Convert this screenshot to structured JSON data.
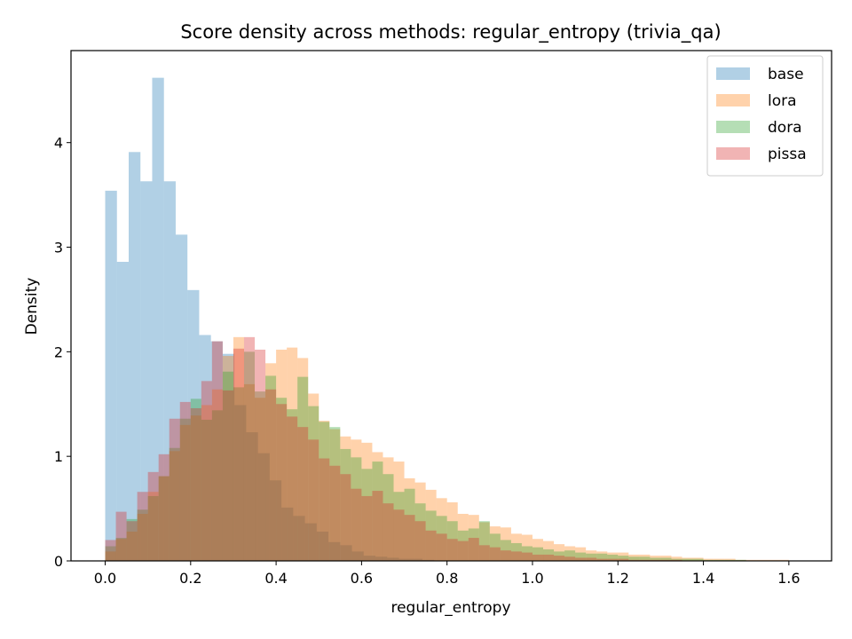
{
  "chart_data": {
    "type": "histogram",
    "title": "Score density across methods: regular_entropy (trivia_qa)",
    "xlabel": "regular_entropy",
    "ylabel": "Density",
    "xlim": [
      -0.08,
      1.7
    ],
    "ylim": [
      0,
      4.88
    ],
    "xticks": [
      "0.0",
      "0.2",
      "0.4",
      "0.6",
      "0.8",
      "1.0",
      "1.2",
      "1.4",
      "1.6"
    ],
    "yticks": [
      "0",
      "1",
      "2",
      "3",
      "4"
    ],
    "legend_position": "top-right",
    "grid": false,
    "series": [
      {
        "name": "base",
        "color": "#1f77b4",
        "opacity": 0.35,
        "bin_start": 0.0,
        "bin_width": 0.0275,
        "values": [
          3.54,
          2.86,
          3.91,
          3.63,
          4.62,
          3.63,
          3.12,
          2.59,
          2.16,
          2.1,
          1.98,
          1.49,
          1.23,
          1.03,
          0.77,
          0.51,
          0.43,
          0.36,
          0.28,
          0.18,
          0.15,
          0.09,
          0.05,
          0.04,
          0.03,
          0.02,
          0.02,
          0.01
        ]
      },
      {
        "name": "lora",
        "color": "#ff7f0e",
        "opacity": 0.35,
        "bin_start": 0.0,
        "bin_width": 0.025,
        "values": [
          0.09,
          0.21,
          0.28,
          0.45,
          0.66,
          0.81,
          1.05,
          1.3,
          1.39,
          1.49,
          1.64,
          1.96,
          2.14,
          1.69,
          1.56,
          1.89,
          2.02,
          2.04,
          1.94,
          1.6,
          1.34,
          1.26,
          1.19,
          1.16,
          1.13,
          1.04,
          0.99,
          0.95,
          0.79,
          0.75,
          0.68,
          0.6,
          0.56,
          0.45,
          0.44,
          0.37,
          0.33,
          0.32,
          0.26,
          0.25,
          0.21,
          0.19,
          0.16,
          0.14,
          0.13,
          0.1,
          0.09,
          0.08,
          0.08,
          0.06,
          0.06,
          0.05,
          0.05,
          0.04,
          0.03,
          0.03,
          0.02,
          0.02,
          0.02,
          0.01,
          0.01,
          0.01,
          0.01,
          0.01
        ]
      },
      {
        "name": "dora",
        "color": "#2ca02c",
        "opacity": 0.35,
        "bin_start": 0.0,
        "bin_width": 0.025,
        "values": [
          0.14,
          0.22,
          0.4,
          0.49,
          0.62,
          0.81,
          1.08,
          1.36,
          1.55,
          1.35,
          1.44,
          1.81,
          1.66,
          2.0,
          1.62,
          1.77,
          1.56,
          1.45,
          1.76,
          1.48,
          1.33,
          1.28,
          1.07,
          0.99,
          0.88,
          0.95,
          0.83,
          0.66,
          0.69,
          0.55,
          0.48,
          0.43,
          0.38,
          0.29,
          0.31,
          0.38,
          0.26,
          0.2,
          0.17,
          0.14,
          0.13,
          0.11,
          0.09,
          0.1,
          0.08,
          0.07,
          0.07,
          0.06,
          0.05,
          0.04,
          0.04,
          0.03,
          0.03,
          0.02,
          0.02,
          0.02,
          0.01,
          0.01,
          0.01,
          0.01
        ]
      },
      {
        "name": "pissa",
        "color": "#d62728",
        "opacity": 0.35,
        "bin_start": 0.0,
        "bin_width": 0.025,
        "values": [
          0.2,
          0.47,
          0.38,
          0.66,
          0.85,
          1.02,
          1.36,
          1.52,
          1.46,
          1.72,
          2.1,
          1.63,
          2.03,
          2.14,
          2.02,
          1.64,
          1.5,
          1.38,
          1.28,
          1.16,
          0.98,
          0.91,
          0.83,
          0.69,
          0.62,
          0.67,
          0.55,
          0.49,
          0.44,
          0.38,
          0.29,
          0.26,
          0.21,
          0.19,
          0.22,
          0.15,
          0.13,
          0.1,
          0.09,
          0.08,
          0.06,
          0.06,
          0.05,
          0.04,
          0.03,
          0.03,
          0.02,
          0.02,
          0.02,
          0.01,
          0.01,
          0.01,
          0.01,
          0.01
        ]
      }
    ]
  }
}
